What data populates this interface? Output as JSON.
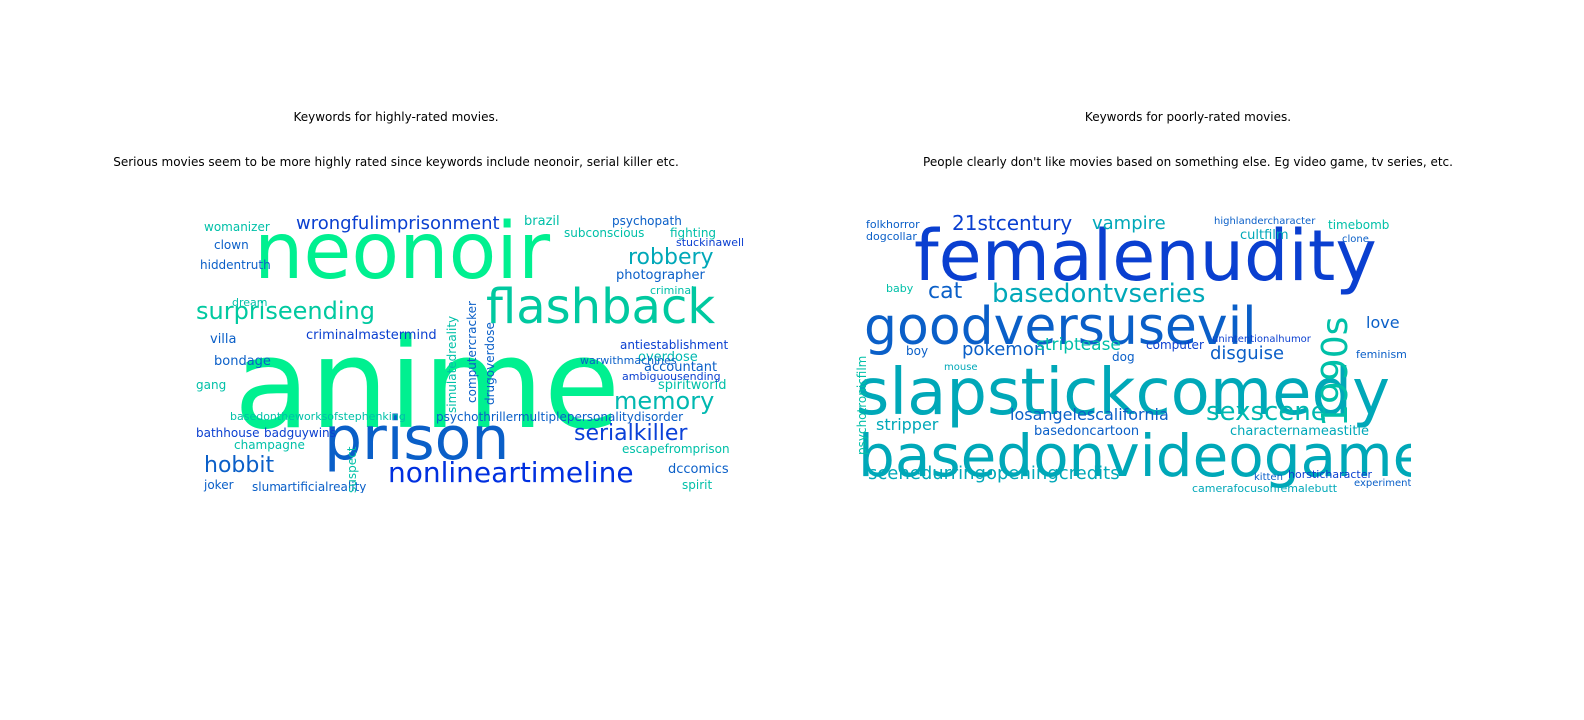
{
  "panels": [
    {
      "title": "Keywords for highly-rated movies.",
      "subtitle": "Serious movies seem to be more highly rated since keywords include neonoir, serial killer etc.",
      "words": [
        {
          "text": "anime",
          "color": "#00f090"
        },
        {
          "text": "neonoir",
          "color": "#00f090"
        },
        {
          "text": "prison",
          "color": "#0a5fc8"
        },
        {
          "text": "flashback",
          "color": "#00c9a0"
        },
        {
          "text": "surpriseending",
          "color": "#00c9a0"
        },
        {
          "text": "nonlineartimeline",
          "color": "#0030e0"
        },
        {
          "text": "serialkiller",
          "color": "#0a40d8"
        },
        {
          "text": "hobbit",
          "color": "#0a5fc8"
        },
        {
          "text": "memory",
          "color": "#00b8b0"
        },
        {
          "text": "robbery",
          "color": "#00a8b8"
        },
        {
          "text": "wrongfulimprisonment",
          "color": "#0a3fd0"
        },
        {
          "text": "photographer",
          "color": "#0a5fc8"
        },
        {
          "text": "antiestablishment",
          "color": "#0a3fd0"
        },
        {
          "text": "overdose",
          "color": "#00b8b0"
        },
        {
          "text": "accountant",
          "color": "#0a5fc8"
        },
        {
          "text": "spiritworld",
          "color": "#00c0a8"
        },
        {
          "text": "criminalmastermind",
          "color": "#0a3fd0"
        },
        {
          "text": "basedontheworksofstephenking",
          "color": "#00c0a8"
        },
        {
          "text": "psychothrillermultiplepersonalitydisorder",
          "color": "#0a5fc8"
        },
        {
          "text": "bathhouse",
          "color": "#0a3fd0"
        },
        {
          "text": "badguywins",
          "color": "#0a3fd0"
        },
        {
          "text": "champagne",
          "color": "#00c0a8"
        },
        {
          "text": "escapefromprison",
          "color": "#00c0a8"
        },
        {
          "text": "dccomics",
          "color": "#0a5fc8"
        },
        {
          "text": "joker",
          "color": "#0a5fc8"
        },
        {
          "text": "slum",
          "color": "#0a5fc8"
        },
        {
          "text": "artificialreality",
          "color": "#0a5fc8"
        },
        {
          "text": "spirit",
          "color": "#00c0a8"
        },
        {
          "text": "womanizer",
          "color": "#00c0a8"
        },
        {
          "text": "clown",
          "color": "#0a5fc8"
        },
        {
          "text": "hiddentruth",
          "color": "#0a5fc8"
        },
        {
          "text": "brazil",
          "color": "#00c0a8"
        },
        {
          "text": "psychopath",
          "color": "#0a5fc8"
        },
        {
          "text": "fighting",
          "color": "#00c0a8"
        },
        {
          "text": "subconscious",
          "color": "#00c0a8"
        },
        {
          "text": "stuckinawell",
          "color": "#0a3fd0"
        },
        {
          "text": "villa",
          "color": "#0a5fc8"
        },
        {
          "text": "bondage",
          "color": "#0a5fc8"
        },
        {
          "text": "gang",
          "color": "#00c0a8"
        },
        {
          "text": "suspect",
          "color": "#00c0a8"
        },
        {
          "text": "dream",
          "color": "#00c0a8"
        },
        {
          "text": "warwithmachines",
          "color": "#0a5fc8"
        },
        {
          "text": "ambiguousending",
          "color": "#0a3fd0"
        },
        {
          "text": "criminal",
          "color": "#00c0a8"
        },
        {
          "text": "drugoverdose",
          "color": "#0a5fc8"
        },
        {
          "text": "computercracker",
          "color": "#0a5fc8"
        },
        {
          "text": "simulatedreality",
          "color": "#00c0a8"
        }
      ]
    },
    {
      "title": "Keywords for poorly-rated movies.",
      "subtitle": "People clearly don't like movies based on something else. Eg video game, tv series, etc.",
      "words": [
        {
          "text": "femalenudity",
          "color": "#0a3fd0"
        },
        {
          "text": "slapstickcomedy",
          "color": "#00a8b8"
        },
        {
          "text": "basedonvideogame",
          "color": "#00a8b8"
        },
        {
          "text": "goodversusevil",
          "color": "#0a5fc8"
        },
        {
          "text": "basedontvseries",
          "color": "#00a8b8"
        },
        {
          "text": "1990s",
          "color": "#00c0a8"
        },
        {
          "text": "sexscene",
          "color": "#00b8b0"
        },
        {
          "text": "losangelescalifornia",
          "color": "#0a5fc8"
        },
        {
          "text": "scenedurringopeningcredits",
          "color": "#00a8b8"
        },
        {
          "text": "21stcentury",
          "color": "#0a3fd0"
        },
        {
          "text": "vampire",
          "color": "#00a8b8"
        },
        {
          "text": "cat",
          "color": "#0a5fc8"
        },
        {
          "text": "pokemon",
          "color": "#0a5fc8"
        },
        {
          "text": "striptease",
          "color": "#00c0a8"
        },
        {
          "text": "disguise",
          "color": "#0a5fc8"
        },
        {
          "text": "stripper",
          "color": "#00a8b8"
        },
        {
          "text": "basedoncartoon",
          "color": "#0a5fc8"
        },
        {
          "text": "characternameastitle",
          "color": "#00a8b8"
        },
        {
          "text": "camerafocusonfemalebutt",
          "color": "#00a8b8"
        },
        {
          "text": "love",
          "color": "#0a5fc8"
        },
        {
          "text": "computer",
          "color": "#0a3fd0"
        },
        {
          "text": "cultfilm",
          "color": "#00a8b8"
        },
        {
          "text": "timebomb",
          "color": "#00c0a8"
        },
        {
          "text": "psychotronicfilm",
          "color": "#00c0a8"
        },
        {
          "text": "folkhorror",
          "color": "#0a5fc8"
        },
        {
          "text": "dogcollar",
          "color": "#0a5fc8"
        },
        {
          "text": "baby",
          "color": "#00c0a8"
        },
        {
          "text": "boy",
          "color": "#0a5fc8"
        },
        {
          "text": "dog",
          "color": "#0a5fc8"
        },
        {
          "text": "mouse",
          "color": "#00a8b8"
        },
        {
          "text": "experiment",
          "color": "#0a5fc8"
        },
        {
          "text": "feminism",
          "color": "#0a5fc8"
        },
        {
          "text": "horsticharacter",
          "color": "#0a3fd0"
        },
        {
          "text": "kitten",
          "color": "#0a5fc8"
        },
        {
          "text": "highlandercharacter",
          "color": "#0a5fc8"
        },
        {
          "text": "clone",
          "color": "#0a5fc8"
        },
        {
          "text": "unintentionalhumor",
          "color": "#0a3fd0"
        }
      ]
    }
  ]
}
